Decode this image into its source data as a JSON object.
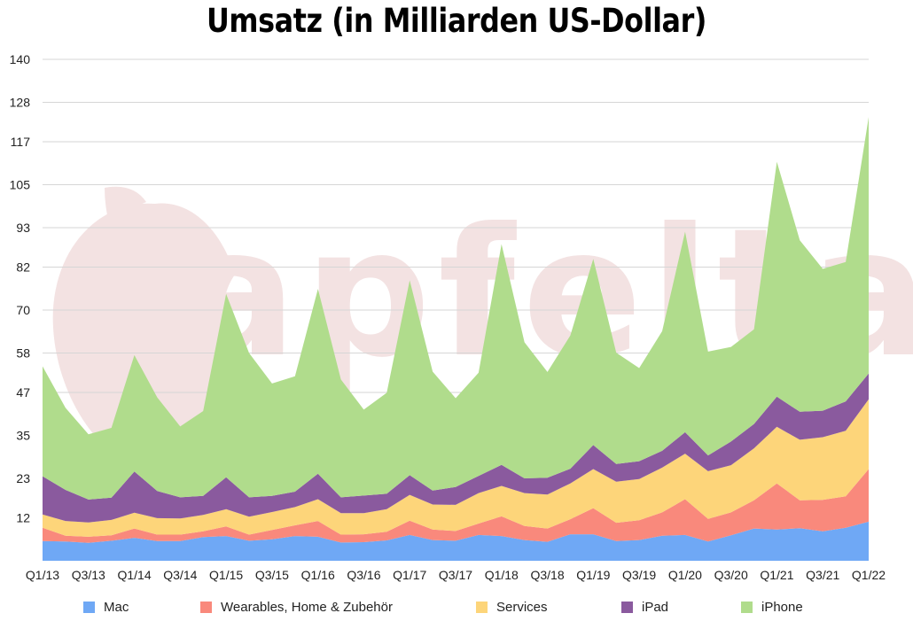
{
  "title": "Umsatz (in Milliarden US-Dollar)",
  "watermark": "apfeltalk",
  "colors": {
    "mac": "#6fa8f5",
    "wearables": "#f9897c",
    "services": "#fdd57a",
    "ipad": "#8a5a9e",
    "iphone": "#b0dc8c",
    "watermark": "#f3e2e2",
    "grid": "#d6d6d6"
  },
  "chart_data": {
    "type": "area",
    "stacked": true,
    "title": "Umsatz (in Milliarden US-Dollar)",
    "xlabel": "",
    "ylabel": "",
    "ylim": [
      0,
      140
    ],
    "y_ticks": [
      "12",
      "23",
      "35",
      "47",
      "58",
      "70",
      "82",
      "93",
      "105",
      "117",
      "128",
      "140"
    ],
    "x_tick_labels": [
      "Q1/13",
      "Q3/13",
      "Q1/14",
      "Q3/14",
      "Q1/15",
      "Q3/15",
      "Q1/16",
      "Q3/16",
      "Q1/17",
      "Q3/17",
      "Q1/18",
      "Q3/18",
      "Q1/19",
      "Q3/19",
      "Q1/20",
      "Q3/20",
      "Q1/21",
      "Q3/21",
      "Q1/22"
    ],
    "categories": [
      "Q1/13",
      "Q2/13",
      "Q3/13",
      "Q4/13",
      "Q1/14",
      "Q2/14",
      "Q3/14",
      "Q4/14",
      "Q1/15",
      "Q2/15",
      "Q3/15",
      "Q4/15",
      "Q1/16",
      "Q2/16",
      "Q3/16",
      "Q4/16",
      "Q1/17",
      "Q2/17",
      "Q3/17",
      "Q4/17",
      "Q1/18",
      "Q2/18",
      "Q3/18",
      "Q4/18",
      "Q1/19",
      "Q2/19",
      "Q3/19",
      "Q4/19",
      "Q1/20",
      "Q2/20",
      "Q3/20",
      "Q4/20",
      "Q1/21",
      "Q2/21",
      "Q3/21",
      "Q4/21",
      "Q1/22"
    ],
    "grid": true,
    "legend_position": "bottom",
    "series": [
      {
        "name": "Mac",
        "key": "mac",
        "values": [
          5.5,
          5.4,
          5.0,
          5.6,
          6.4,
          5.5,
          5.5,
          6.6,
          6.9,
          5.6,
          6.0,
          6.9,
          6.7,
          5.1,
          5.2,
          5.7,
          7.2,
          5.8,
          5.6,
          7.2,
          6.9,
          5.8,
          5.3,
          7.4,
          7.4,
          5.5,
          5.8,
          7.0,
          7.2,
          5.4,
          7.1,
          9.0,
          8.7,
          9.1,
          8.2,
          9.2,
          10.9
        ]
      },
      {
        "name": "Wearables, Home & Zubehör",
        "key": "wearables",
        "values": [
          3.7,
          1.6,
          1.7,
          1.5,
          2.6,
          1.8,
          1.8,
          1.6,
          2.7,
          1.7,
          2.6,
          3.0,
          4.4,
          2.2,
          2.2,
          2.4,
          4.0,
          2.9,
          2.7,
          3.2,
          5.5,
          3.9,
          3.7,
          4.2,
          7.3,
          5.1,
          5.5,
          6.5,
          10.0,
          6.3,
          6.4,
          7.9,
          12.9,
          7.8,
          8.8,
          8.8,
          14.7
        ]
      },
      {
        "name": "Services",
        "key": "services",
        "values": [
          3.7,
          4.1,
          4.0,
          4.3,
          4.4,
          4.6,
          4.5,
          4.6,
          4.8,
          5.0,
          5.0,
          5.1,
          6.1,
          6.0,
          5.9,
          6.3,
          7.2,
          7.0,
          7.3,
          8.5,
          8.5,
          9.2,
          9.5,
          10.0,
          10.9,
          11.5,
          11.5,
          12.5,
          12.7,
          13.3,
          13.2,
          14.5,
          15.8,
          16.9,
          17.5,
          18.3,
          19.5
        ]
      },
      {
        "name": "iPad",
        "key": "ipad",
        "values": [
          10.7,
          8.7,
          6.4,
          6.2,
          11.5,
          7.6,
          5.9,
          5.3,
          8.9,
          5.4,
          4.5,
          4.3,
          7.1,
          4.4,
          4.9,
          4.3,
          5.5,
          3.9,
          5.0,
          4.8,
          5.9,
          4.1,
          4.7,
          4.1,
          6.7,
          4.9,
          5.0,
          4.7,
          6.0,
          4.4,
          6.6,
          6.8,
          8.4,
          7.8,
          7.4,
          8.2,
          7.2
        ]
      },
      {
        "name": "iPhone",
        "key": "iphone",
        "values": [
          30.7,
          22.9,
          18.2,
          19.5,
          32.5,
          26.1,
          19.8,
          23.7,
          51.2,
          40.3,
          31.4,
          32.2,
          51.6,
          32.9,
          24.0,
          28.2,
          54.4,
          33.2,
          24.8,
          28.8,
          61.6,
          38.0,
          29.5,
          37.2,
          52.0,
          31.1,
          26.0,
          33.4,
          56.0,
          29.0,
          26.4,
          26.4,
          65.6,
          47.9,
          39.6,
          38.9,
          71.6
        ]
      }
    ]
  },
  "legend": [
    {
      "key": "mac",
      "label": "Mac"
    },
    {
      "key": "wearables",
      "label": "Wearables, Home & Zubehör"
    },
    {
      "key": "services",
      "label": "Services"
    },
    {
      "key": "ipad",
      "label": "iPad"
    },
    {
      "key": "iphone",
      "label": "iPhone"
    }
  ]
}
